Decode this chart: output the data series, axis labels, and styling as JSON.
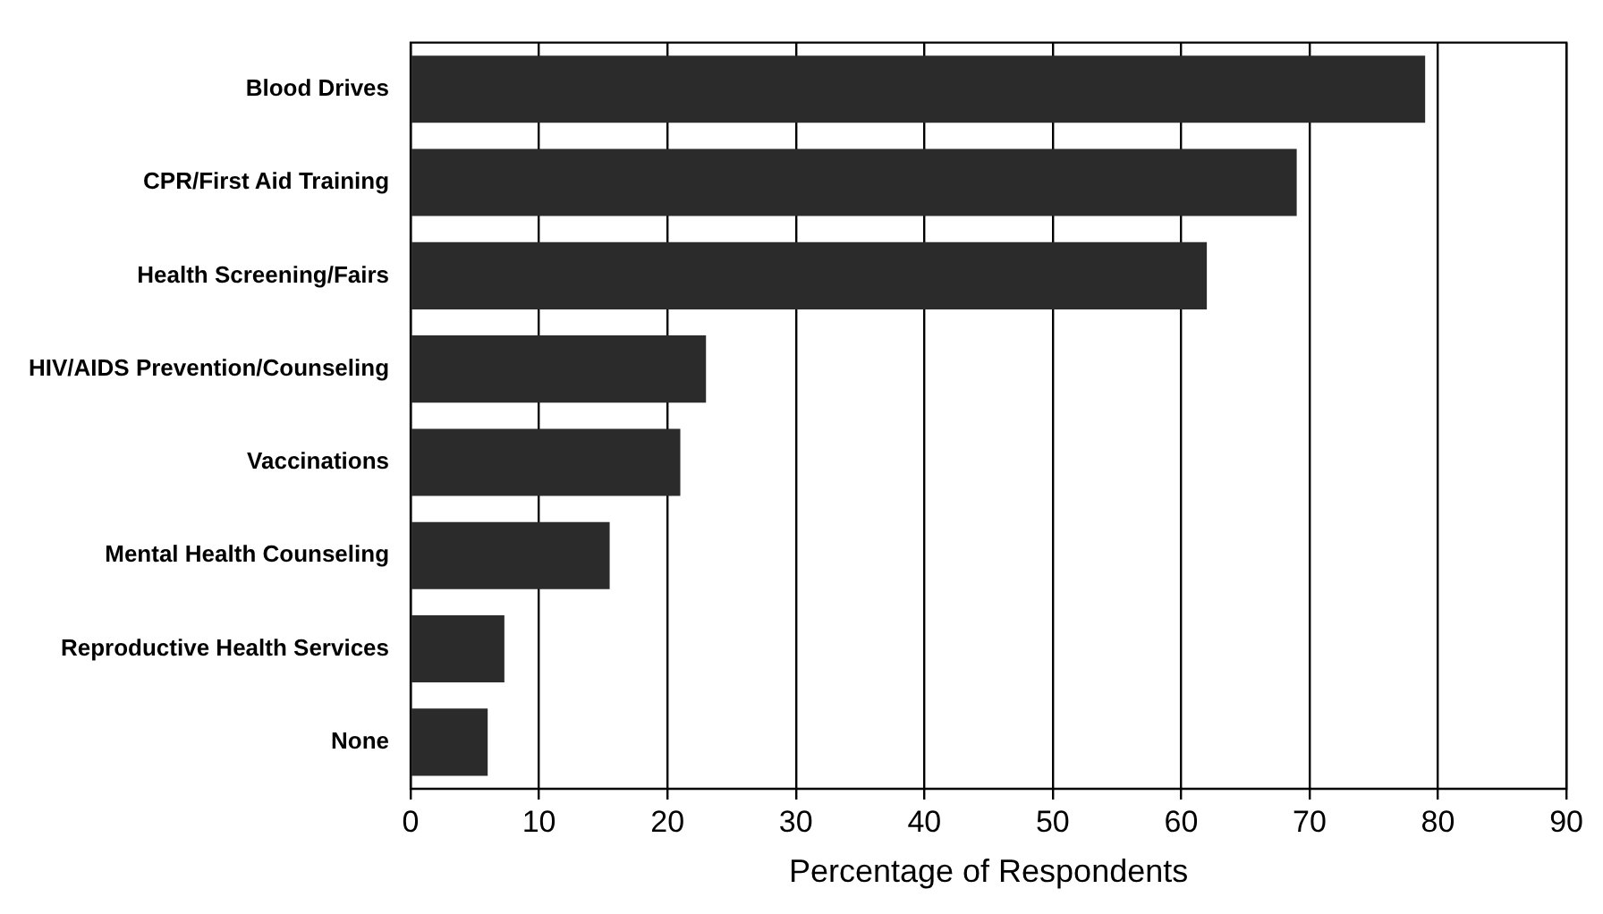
{
  "chart_data": {
    "type": "bar",
    "orientation": "horizontal",
    "xlabel": "Percentage of Respondents",
    "categories": [
      "Blood Drives",
      "CPR/First Aid Training",
      "Health Screening/Fairs",
      "HIV/AIDS Prevention/Counseling",
      "Vaccinations",
      "Mental Health Counseling",
      "Reproductive Health Services",
      "None"
    ],
    "values": [
      79,
      69,
      62,
      23,
      21,
      15.5,
      7.3,
      6
    ],
    "color": "#2b2b2b",
    "xlim": [
      0,
      90
    ],
    "xticks": [
      0,
      10,
      20,
      30,
      40,
      50,
      60,
      70,
      80,
      90
    ],
    "grid": "x",
    "legend": false
  }
}
